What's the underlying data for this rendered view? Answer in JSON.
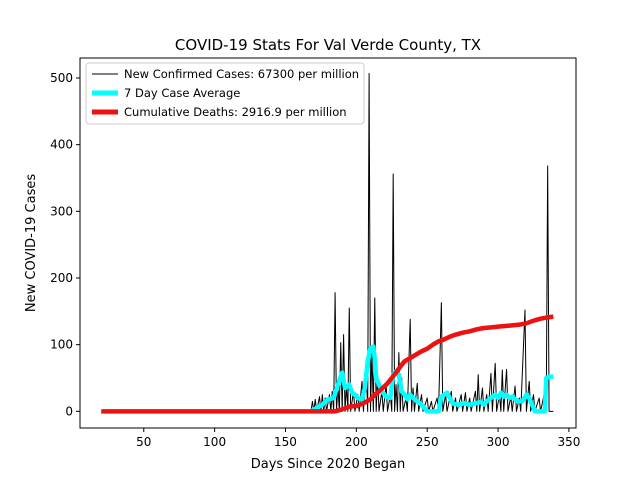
{
  "chart_data": {
    "type": "line",
    "title": "COVID-19 Stats For Val Verde County, TX",
    "xlabel": "Days Since 2020 Began",
    "ylabel": "New COVID-19 Cases",
    "xlim": [
      5,
      355
    ],
    "ylim": [
      -25,
      530
    ],
    "xticks": [
      50,
      100,
      150,
      200,
      250,
      300,
      350
    ],
    "yticks": [
      0,
      100,
      200,
      300,
      400,
      500
    ],
    "grid": false,
    "legend_position": "top-left",
    "series": [
      {
        "name": "New Confirmed Cases: 67300 per million",
        "color": "#000000",
        "style": "thin",
        "points": [
          [
            20,
            0
          ],
          [
            168,
            0
          ],
          [
            169,
            15
          ],
          [
            170,
            0
          ],
          [
            171,
            18
          ],
          [
            172,
            0
          ],
          [
            174,
            22
          ],
          [
            175,
            0
          ],
          [
            176,
            25
          ],
          [
            177,
            0
          ],
          [
            178,
            20
          ],
          [
            179,
            0
          ],
          [
            181,
            25
          ],
          [
            182,
            0
          ],
          [
            183,
            30
          ],
          [
            184,
            0
          ],
          [
            185,
            178
          ],
          [
            186,
            0
          ],
          [
            187,
            40
          ],
          [
            188,
            0
          ],
          [
            189,
            103
          ],
          [
            190,
            0
          ],
          [
            191,
            115
          ],
          [
            192,
            0
          ],
          [
            193,
            40
          ],
          [
            194,
            0
          ],
          [
            195,
            155
          ],
          [
            196,
            0
          ],
          [
            198,
            30
          ],
          [
            199,
            0
          ],
          [
            201,
            25
          ],
          [
            202,
            0
          ],
          [
            204,
            45
          ],
          [
            205,
            0
          ],
          [
            207,
            65
          ],
          [
            208,
            0
          ],
          [
            209,
            507
          ],
          [
            210,
            0
          ],
          [
            211,
            90
          ],
          [
            212,
            0
          ],
          [
            213,
            170
          ],
          [
            214,
            0
          ],
          [
            215,
            55
          ],
          [
            216,
            0
          ],
          [
            218,
            30
          ],
          [
            219,
            0
          ],
          [
            221,
            40
          ],
          [
            222,
            0
          ],
          [
            224,
            25
          ],
          [
            225,
            0
          ],
          [
            226,
            356
          ],
          [
            227,
            0
          ],
          [
            228,
            40
          ],
          [
            229,
            0
          ],
          [
            230,
            88
          ],
          [
            231,
            0
          ],
          [
            232,
            50
          ],
          [
            233,
            0
          ],
          [
            235,
            20
          ],
          [
            236,
            0
          ],
          [
            238,
            138
          ],
          [
            239,
            0
          ],
          [
            240,
            35
          ],
          [
            241,
            0
          ],
          [
            243,
            42
          ],
          [
            244,
            0
          ],
          [
            246,
            25
          ],
          [
            247,
            0
          ],
          [
            250,
            20
          ],
          [
            251,
            0
          ],
          [
            253,
            15
          ],
          [
            254,
            0
          ],
          [
            257,
            20
          ],
          [
            258,
            0
          ],
          [
            260,
            163
          ],
          [
            261,
            0
          ],
          [
            263,
            25
          ],
          [
            264,
            0
          ],
          [
            267,
            30
          ],
          [
            268,
            0
          ],
          [
            270,
            20
          ],
          [
            271,
            0
          ],
          [
            274,
            25
          ],
          [
            275,
            0
          ],
          [
            277,
            28
          ],
          [
            278,
            0
          ],
          [
            280,
            20
          ],
          [
            281,
            0
          ],
          [
            284,
            30
          ],
          [
            285,
            0
          ],
          [
            286,
            55
          ],
          [
            287,
            0
          ],
          [
            289,
            35
          ],
          [
            290,
            0
          ],
          [
            292,
            25
          ],
          [
            293,
            0
          ],
          [
            295,
            57
          ],
          [
            296,
            0
          ],
          [
            298,
            72
          ],
          [
            299,
            0
          ],
          [
            301,
            25
          ],
          [
            302,
            0
          ],
          [
            303,
            62
          ],
          [
            304,
            0
          ],
          [
            306,
            63
          ],
          [
            307,
            0
          ],
          [
            309,
            22
          ],
          [
            310,
            0
          ],
          [
            312,
            38
          ],
          [
            313,
            0
          ],
          [
            315,
            20
          ],
          [
            316,
            0
          ],
          [
            319,
            152
          ],
          [
            320,
            0
          ],
          [
            322,
            45
          ],
          [
            323,
            0
          ],
          [
            325,
            25
          ],
          [
            326,
            0
          ],
          [
            329,
            20
          ],
          [
            330,
            0
          ],
          [
            333,
            30
          ],
          [
            334,
            0
          ],
          [
            335,
            368
          ],
          [
            336,
            0
          ],
          [
            339,
            0
          ]
        ]
      },
      {
        "name": "7 Day Case Average",
        "color": "#00ffff",
        "style": "thick",
        "points": [
          [
            168,
            0
          ],
          [
            172,
            5
          ],
          [
            176,
            10
          ],
          [
            180,
            18
          ],
          [
            184,
            20
          ],
          [
            187,
            40
          ],
          [
            190,
            58
          ],
          [
            192,
            35
          ],
          [
            195,
            40
          ],
          [
            197,
            28
          ],
          [
            199,
            25
          ],
          [
            201,
            20
          ],
          [
            204,
            18
          ],
          [
            206,
            35
          ],
          [
            208,
            75
          ],
          [
            210,
            95
          ],
          [
            212,
            97
          ],
          [
            213,
            78
          ],
          [
            214,
            50
          ],
          [
            216,
            40
          ],
          [
            218,
            30
          ],
          [
            221,
            22
          ],
          [
            224,
            20
          ],
          [
            226,
            55
          ],
          [
            228,
            60
          ],
          [
            230,
            55
          ],
          [
            232,
            30
          ],
          [
            234,
            25
          ],
          [
            236,
            18
          ],
          [
            238,
            25
          ],
          [
            240,
            20
          ],
          [
            243,
            15
          ],
          [
            246,
            10
          ],
          [
            248,
            5
          ],
          [
            250,
            0
          ],
          [
            253,
            0
          ],
          [
            256,
            0
          ],
          [
            258,
            0
          ],
          [
            260,
            22
          ],
          [
            262,
            25
          ],
          [
            264,
            28
          ],
          [
            266,
            20
          ],
          [
            268,
            12
          ],
          [
            272,
            10
          ],
          [
            276,
            12
          ],
          [
            280,
            10
          ],
          [
            284,
            12
          ],
          [
            288,
            14
          ],
          [
            290,
            10
          ],
          [
            292,
            15
          ],
          [
            295,
            20
          ],
          [
            298,
            25
          ],
          [
            300,
            20
          ],
          [
            302,
            28
          ],
          [
            304,
            22
          ],
          [
            306,
            25
          ],
          [
            308,
            20
          ],
          [
            310,
            22
          ],
          [
            312,
            18
          ],
          [
            314,
            15
          ],
          [
            317,
            15
          ],
          [
            320,
            25
          ],
          [
            322,
            20
          ],
          [
            324,
            10
          ],
          [
            326,
            0
          ],
          [
            330,
            0
          ],
          [
            333,
            0
          ],
          [
            334,
            50
          ],
          [
            336,
            52
          ],
          [
            338,
            52
          ],
          [
            339,
            52
          ]
        ]
      },
      {
        "name": "Cumulative Deaths: 2916.9 per million",
        "color": "#ee1111",
        "style": "thick",
        "points": [
          [
            20,
            0
          ],
          [
            185,
            0
          ],
          [
            190,
            3
          ],
          [
            195,
            7
          ],
          [
            200,
            8
          ],
          [
            205,
            12
          ],
          [
            210,
            18
          ],
          [
            213,
            25
          ],
          [
            216,
            30
          ],
          [
            219,
            36
          ],
          [
            222,
            42
          ],
          [
            225,
            50
          ],
          [
            228,
            58
          ],
          [
            231,
            67
          ],
          [
            234,
            75
          ],
          [
            238,
            80
          ],
          [
            242,
            85
          ],
          [
            246,
            90
          ],
          [
            250,
            94
          ],
          [
            254,
            100
          ],
          [
            258,
            105
          ],
          [
            262,
            108
          ],
          [
            266,
            112
          ],
          [
            270,
            115
          ],
          [
            275,
            118
          ],
          [
            280,
            120
          ],
          [
            285,
            123
          ],
          [
            290,
            125
          ],
          [
            295,
            126
          ],
          [
            300,
            127
          ],
          [
            305,
            128
          ],
          [
            310,
            129
          ],
          [
            315,
            130
          ],
          [
            320,
            132
          ],
          [
            325,
            136
          ],
          [
            330,
            139
          ],
          [
            335,
            141
          ],
          [
            339,
            142
          ]
        ]
      }
    ]
  }
}
